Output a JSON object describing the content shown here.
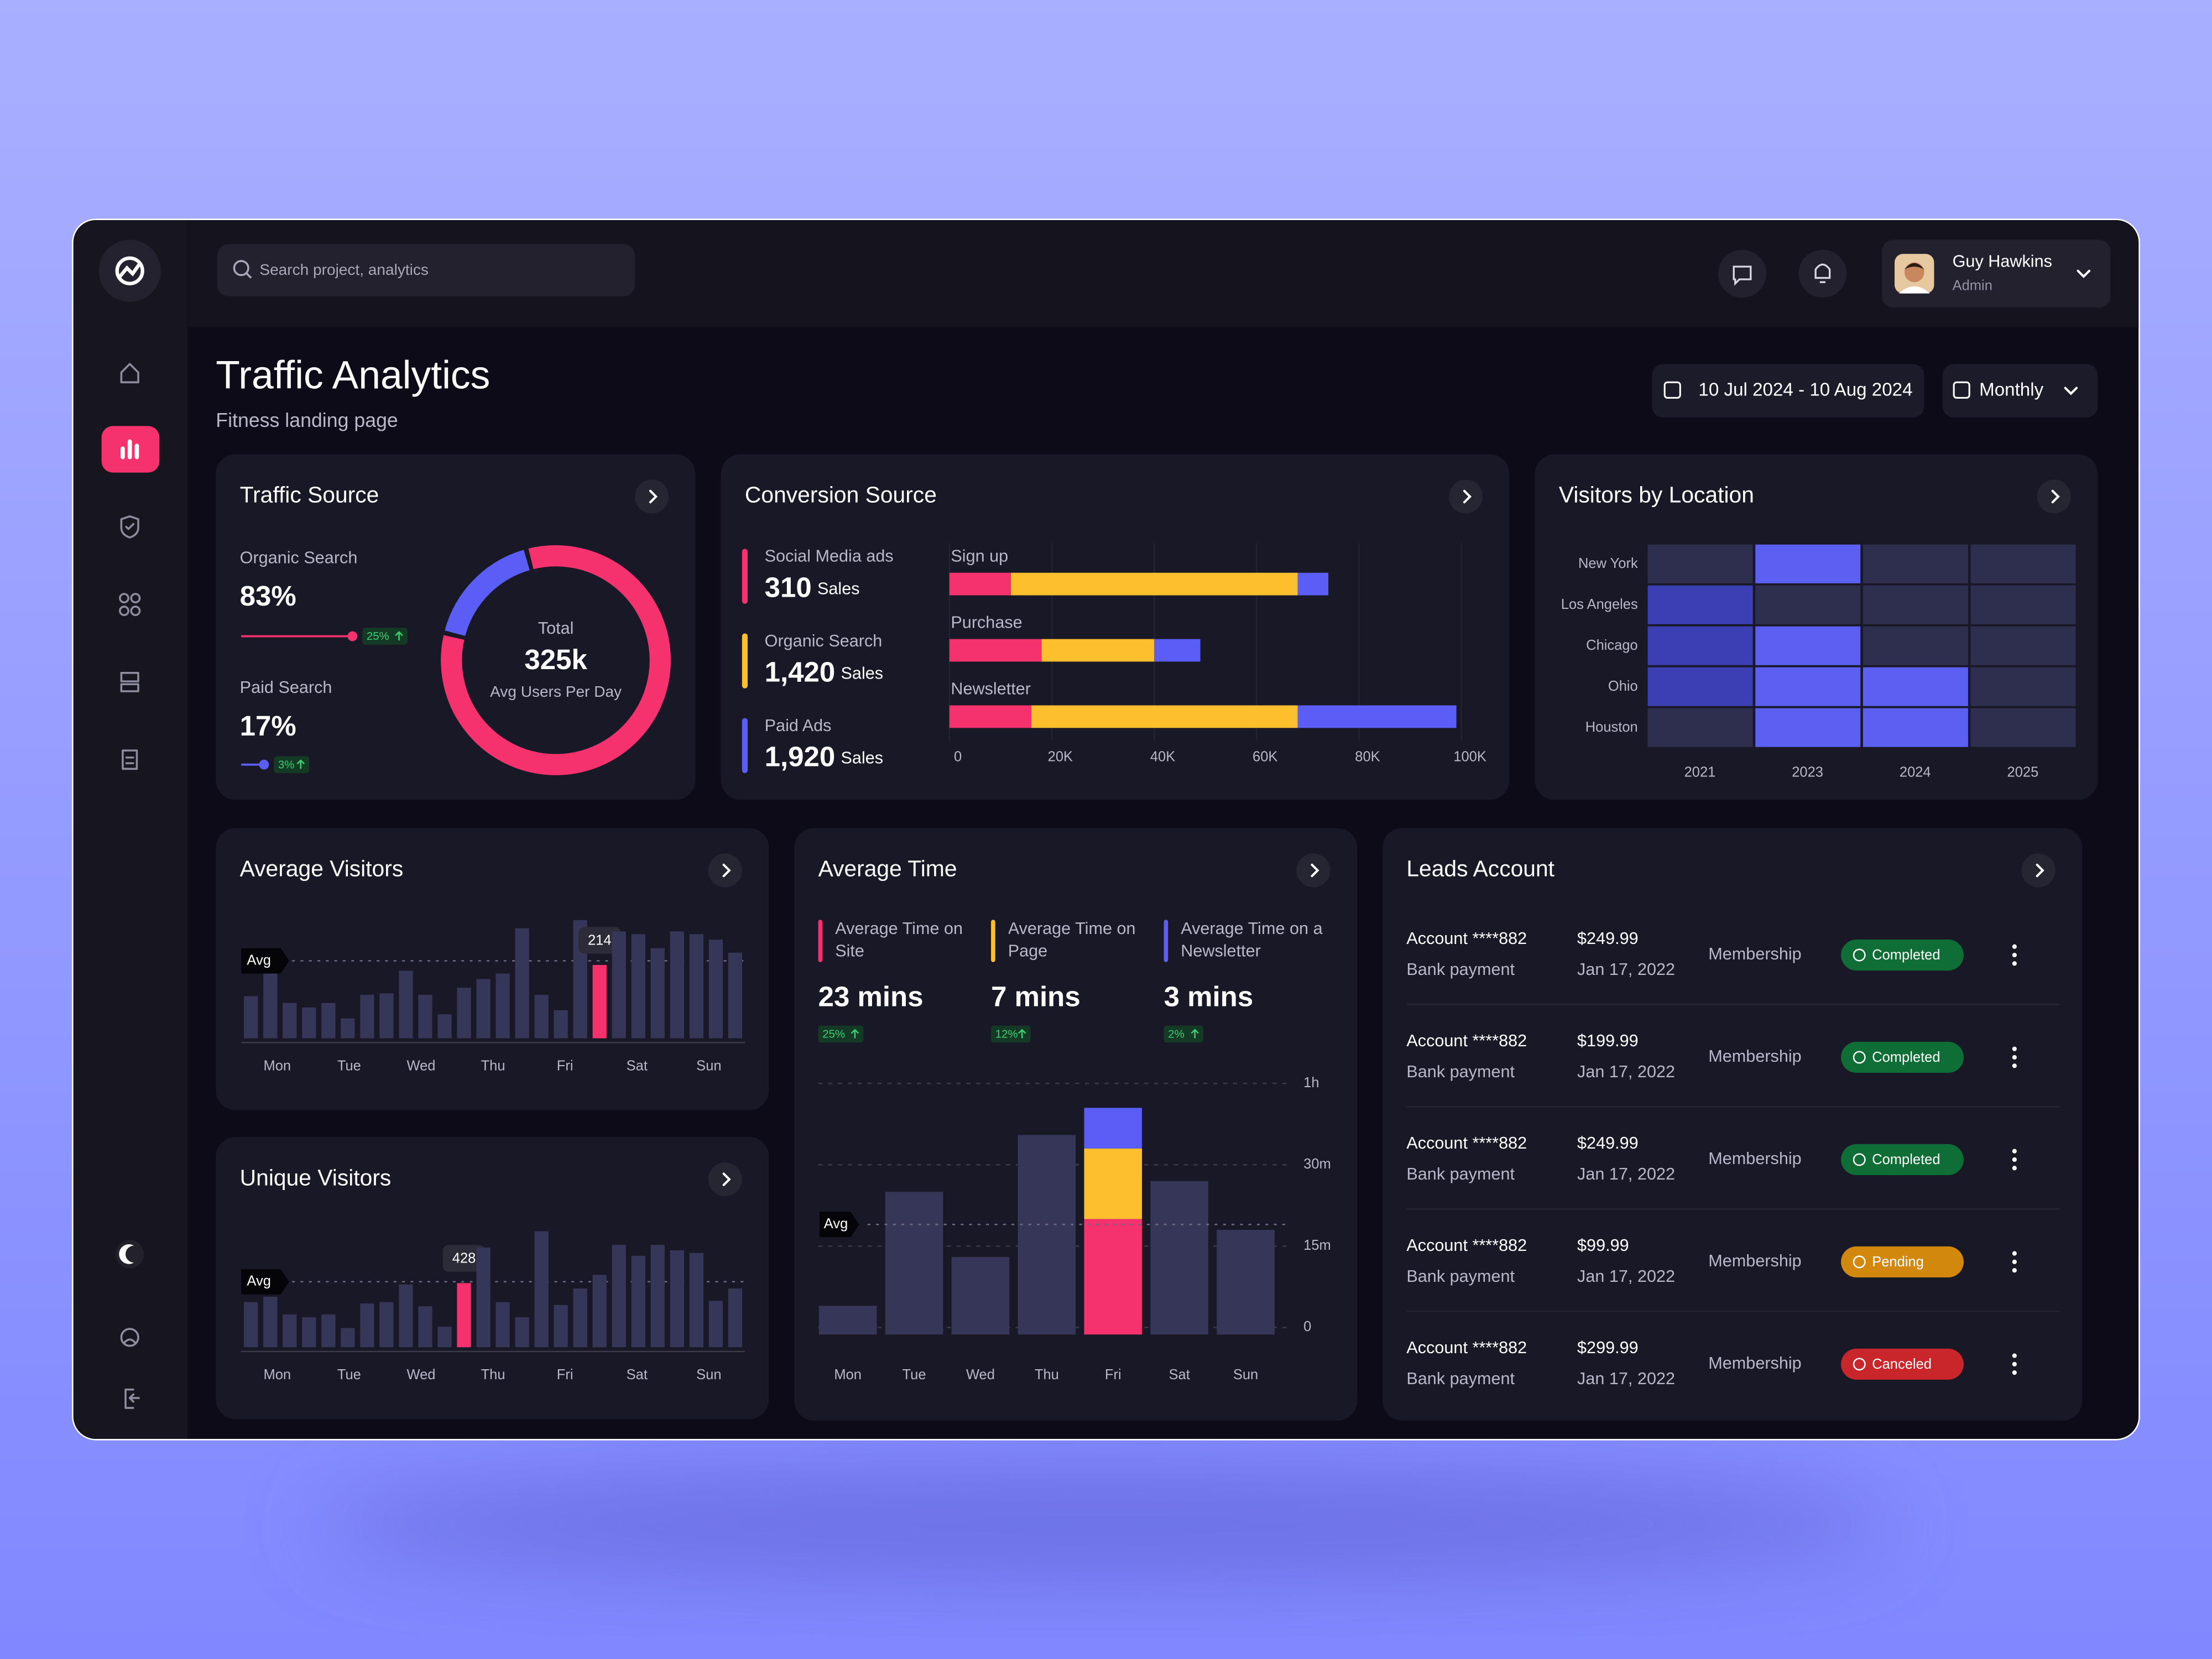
{
  "search": {
    "placeholder": "Search project, analytics"
  },
  "user": {
    "name": "Guy Hawkins",
    "role": "Admin"
  },
  "header": {
    "title": "Traffic Analytics",
    "subtitle": "Fitness landing page",
    "date_range": "10 Jul 2024 - 10 Aug 2024",
    "period": "Monthly"
  },
  "chart_data": [
    {
      "type": "donut",
      "title": "Traffic Source",
      "series": [
        {
          "name": "Organic Search",
          "value": 83,
          "value_label": "83%",
          "change": "25%",
          "color": "#f5326e"
        },
        {
          "name": "Paid Search",
          "value": 17,
          "value_label": "17%",
          "change": "3%",
          "color": "#5b5ef4"
        }
      ],
      "center": {
        "title": "Total",
        "value": "325k",
        "caption": "Avg Users Per Day"
      }
    },
    {
      "type": "stacked-barh",
      "title": "Conversion Source",
      "categories": [
        "Sign up",
        "Purchase",
        "Newsletter"
      ],
      "sales_unit": "Sales",
      "series": [
        {
          "name": "Social Media ads",
          "color": "#f5326e",
          "values": [
            12000,
            18000,
            16000
          ],
          "sales": 310,
          "sales_label": "310"
        },
        {
          "name": "Organic Search",
          "color": "#fdbf2d",
          "values": [
            56000,
            22000,
            52000
          ],
          "sales": 1420,
          "sales_label": "1,420"
        },
        {
          "name": "Paid Ads",
          "color": "#5b5ef4",
          "values": [
            6000,
            9000,
            31000
          ],
          "sales": 1920,
          "sales_label": "1,920"
        }
      ],
      "xlim": [
        0,
        100000
      ],
      "xticks": [
        0,
        {
          "value": 20000,
          "label": "20K"
        },
        {
          "value": 40000,
          "label": "40K"
        },
        {
          "value": 60000,
          "label": "60K"
        },
        {
          "value": 80000,
          "label": "80K"
        },
        {
          "value": 100000,
          "label": "100K"
        }
      ]
    },
    {
      "type": "heatmap",
      "title": "Visitors by Location",
      "rows": [
        "New York",
        "Los Angeles",
        "Chicago",
        "Ohio",
        "Houston"
      ],
      "columns": [
        "2021",
        "2023",
        "2024",
        "2025"
      ],
      "values": [
        [
          0,
          2,
          0,
          0
        ],
        [
          1,
          0,
          0,
          0
        ],
        [
          1,
          2,
          0,
          0
        ],
        [
          1,
          2,
          2,
          0
        ],
        [
          0,
          2,
          2,
          0
        ]
      ],
      "colors": [
        "#2e2f4e",
        "#3b3fb2",
        "#5b5ff2"
      ]
    },
    {
      "type": "bar",
      "title": "Average Visitors",
      "x_labels": [
        "Mon",
        "Tue",
        "Wed",
        "Thu",
        "Fri",
        "Sat",
        "Sun"
      ],
      "values": [
        123,
        189,
        103,
        90,
        103,
        58,
        127,
        131,
        197,
        127,
        70,
        148,
        173,
        189,
        321,
        127,
        82,
        345,
        214,
        312,
        304,
        263,
        312,
        304,
        288,
        250
      ],
      "ylim": [
        0,
        350
      ],
      "average": 226,
      "average_label": "Avg",
      "color": "#363659",
      "highlight": {
        "index": 18,
        "color": "#f5326e"
      }
    },
    {
      "type": "bar",
      "title": "Unique Visitors",
      "x_labels": [
        "Mon",
        "Tue",
        "Wed",
        "Thu",
        "Fri",
        "Sat",
        "Sun"
      ],
      "values": [
        301,
        337,
        219,
        200,
        219,
        128,
        292,
        301,
        419,
        273,
        137,
        428,
        665,
        301,
        200,
        774,
        282,
        392,
        483,
        683,
        610,
        683,
        647,
        629,
        310,
        392
      ],
      "ylim": [
        0,
        800
      ],
      "average": 437,
      "average_label": "Avg",
      "color": "#363659",
      "highlight": {
        "index": 11,
        "color": "#f5326e"
      }
    },
    {
      "type": "stacked-bar",
      "title": "Average Time",
      "categories": [
        "Mon",
        "Tue",
        "Wed",
        "Thu",
        "Fri",
        "Sat",
        "Sun"
      ],
      "values": [
        4,
        25,
        13,
        41,
        null,
        27,
        18
      ],
      "color": "#363659",
      "series": [
        {
          "name": "Average Time on Site",
          "color": "#f5326e",
          "values": [
            null,
            null,
            null,
            null,
            20,
            null,
            null
          ],
          "summary": 23,
          "summary_label": "23 mins",
          "change": "25%"
        },
        {
          "name": "Average Time on Page",
          "color": "#fdbf2d",
          "values": [
            null,
            null,
            null,
            null,
            16,
            null,
            null
          ],
          "summary": 7,
          "summary_label": "7 mins",
          "change": "12%"
        },
        {
          "name": "Average Time on a Newsletter",
          "color": "#5b5ef4",
          "values": [
            null,
            null,
            null,
            null,
            15,
            null,
            null
          ],
          "summary": 3,
          "summary_label": "3 mins",
          "change": "2%"
        }
      ],
      "ylim": [
        0,
        60
      ],
      "yticks": [
        0,
        {
          "value": 15,
          "label": "15m"
        },
        {
          "value": 30,
          "label": "30m"
        },
        {
          "value": 60,
          "label": "1h"
        }
      ],
      "average": 19,
      "average_label": "Avg",
      "grid": true
    }
  ],
  "leads": {
    "title": "Leads Account",
    "rows": [
      {
        "account": "Account ****882",
        "method": "Bank payment",
        "amount": "$249.99",
        "date": "Jan 17, 2022",
        "type": "Membership",
        "status": "Completed",
        "status_color": "#0f6e35"
      },
      {
        "account": "Account ****882",
        "method": "Bank payment",
        "amount": "$199.99",
        "date": "Jan 17, 2022",
        "type": "Membership",
        "status": "Completed",
        "status_color": "#0f6e35"
      },
      {
        "account": "Account ****882",
        "method": "Bank payment",
        "amount": "$249.99",
        "date": "Jan 17, 2022",
        "type": "Membership",
        "status": "Completed",
        "status_color": "#0f6e35"
      },
      {
        "account": "Account ****882",
        "method": "Bank payment",
        "amount": "$99.99",
        "date": "Jan 17, 2022",
        "type": "Membership",
        "status": "Pending",
        "status_color": "#d1880c"
      },
      {
        "account": "Account ****882",
        "method": "Bank payment",
        "amount": "$299.99",
        "date": "Jan 17, 2022",
        "type": "Membership",
        "status": "Canceled",
        "status_color": "#c8262b"
      }
    ]
  }
}
